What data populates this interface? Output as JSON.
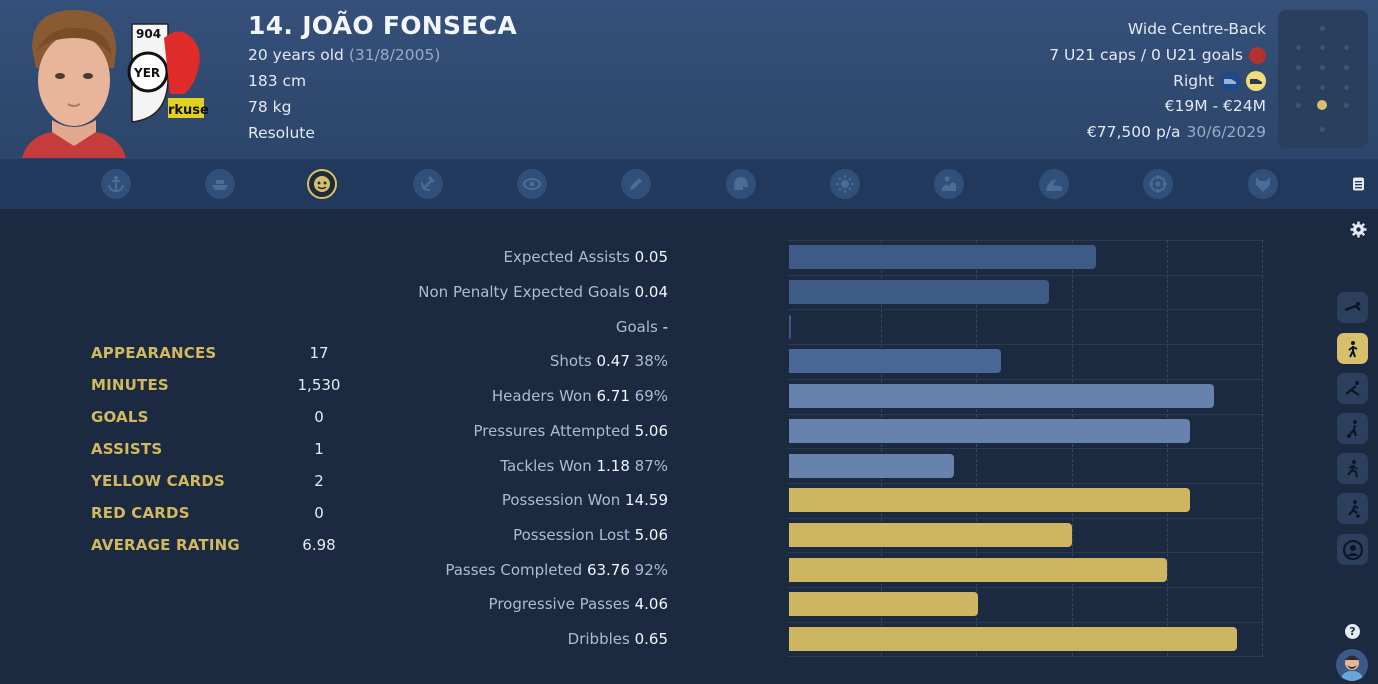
{
  "player": {
    "name": "14. JOÃO FONSECA",
    "age": "20 years old",
    "dob": "(31/8/2005)",
    "height": "183 cm",
    "weight": "78 kg",
    "personality": "Resolute",
    "position": "Wide Centre-Back",
    "caps": "7 U21 caps / 0 U21 goals",
    "foot": "Right",
    "value": "€19M - €24M",
    "wage": "€77,500 p/a",
    "contract": "30/6/2029"
  },
  "tabs": [
    {
      "icon": "anchor-icon"
    },
    {
      "icon": "boat-icon"
    },
    {
      "icon": "bulldog-icon",
      "active": true
    },
    {
      "icon": "hammer-sickle-icon"
    },
    {
      "icon": "eye-icon"
    },
    {
      "icon": "pencil-icon"
    },
    {
      "icon": "helmet-icon"
    },
    {
      "icon": "sun-icon"
    },
    {
      "icon": "wave-hand-icon"
    },
    {
      "icon": "wave-icon"
    },
    {
      "icon": "target-icon"
    },
    {
      "icon": "wolf-icon"
    }
  ],
  "season_stats": [
    {
      "label": "APPEARANCES",
      "value": "17"
    },
    {
      "label": "MINUTES",
      "value": "1,530"
    },
    {
      "label": "GOALS",
      "value": "0"
    },
    {
      "label": "ASSISTS",
      "value": "1"
    },
    {
      "label": "YELLOW CARDS",
      "value": "2"
    },
    {
      "label": "RED CARDS",
      "value": "0"
    },
    {
      "label": "AVERAGE RATING",
      "value": "6.98"
    }
  ],
  "chart_data": {
    "type": "bar",
    "orientation": "horizontal",
    "xlim": [
      0,
      1
    ],
    "grid": true,
    "categories": [
      "Expected Assists",
      "Non Penalty Expected Goals",
      "Goals",
      "Shots",
      "Headers Won",
      "Pressures Attempted",
      "Tackles Won",
      "Possession Won",
      "Possession Lost",
      "Passes Completed",
      "Progressive Passes",
      "Dribbles"
    ],
    "labels": [
      "0.05",
      "0.04",
      "-",
      "0.47",
      "6.71",
      "5.06",
      "1.18",
      "14.59",
      "5.06",
      "63.76",
      "4.06",
      "0.65"
    ],
    "percentages": [
      "",
      "",
      "",
      "38%",
      "69%",
      "",
      "87%",
      "",
      "",
      "92%",
      "",
      ""
    ],
    "values": [
      0.65,
      0.55,
      0.0,
      0.45,
      0.9,
      0.85,
      0.35,
      0.85,
      0.6,
      0.8,
      0.4,
      0.95
    ],
    "colors": [
      "#3e5b87",
      "#3e5b87",
      "#3e5b87",
      "#4a6798",
      "#6882ae",
      "#6882ae",
      "#6882ae",
      "#cdb562",
      "#cdb562",
      "#cdb562",
      "#cdb562",
      "#cdb562"
    ]
  },
  "side_buttons": [
    {
      "icon": "diving-player-icon"
    },
    {
      "icon": "standing-player-icon",
      "active": true
    },
    {
      "icon": "tackling-player-icon"
    },
    {
      "icon": "kicking-player-icon"
    },
    {
      "icon": "running-player-icon"
    },
    {
      "icon": "dribbling-player-icon"
    },
    {
      "icon": "face-icon"
    }
  ],
  "help_label": "?"
}
